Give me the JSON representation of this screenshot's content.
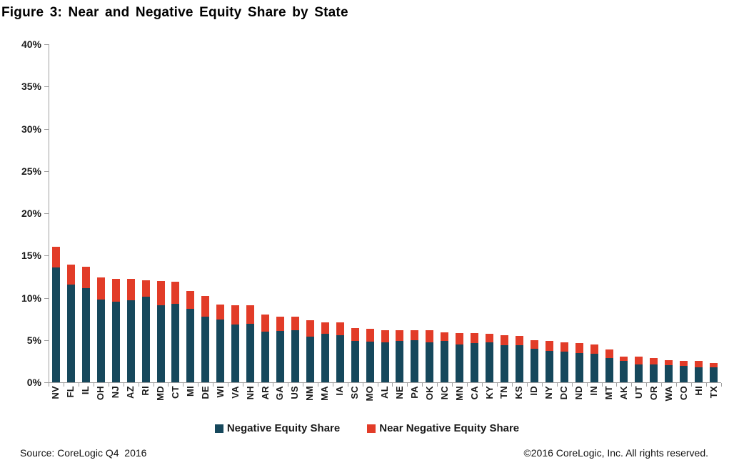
{
  "title": "Figure 3: Near and Negative Equity Share by State",
  "legend": {
    "negative": {
      "label": "Negative Equity Share",
      "color": "#16485C"
    },
    "near": {
      "label": "Near Negative Equity Share",
      "color": "#E23C28"
    }
  },
  "footer": {
    "source": "Source: CoreLogic Q4  2016",
    "copyright": "©2016 CoreLogic, Inc. All rights reserved."
  },
  "chart_data": {
    "type": "bar",
    "stacked": true,
    "title": "Figure 3: Near and Negative Equity Share by State",
    "xlabel": "",
    "ylabel": "",
    "ylim": [
      0,
      40
    ],
    "yticks": [
      "0%",
      "5%",
      "10%",
      "15%",
      "20%",
      "25%",
      "30%",
      "35%",
      "40%"
    ],
    "ytick_values": [
      0,
      5,
      10,
      15,
      20,
      25,
      30,
      35,
      40
    ],
    "grid": false,
    "legend_position": "bottom",
    "categories": [
      "NV",
      "FL",
      "IL",
      "OH",
      "NJ",
      "AZ",
      "RI",
      "MD",
      "CT",
      "MI",
      "DE",
      "WI",
      "VA",
      "NH",
      "AR",
      "GA",
      "US",
      "NM",
      "MA",
      "IA",
      "SC",
      "MO",
      "AL",
      "NE",
      "PA",
      "OK",
      "NC",
      "MN",
      "CA",
      "KY",
      "TN",
      "KS",
      "ID",
      "NY",
      "DC",
      "ND",
      "IN",
      "MT",
      "AK",
      "UT",
      "OR",
      "WA",
      "CO",
      "HI",
      "TX"
    ],
    "series": [
      {
        "name": "Negative Equity Share",
        "color": "#16485C",
        "values": [
          13.6,
          11.6,
          11.1,
          9.8,
          9.5,
          9.7,
          10.1,
          9.1,
          9.3,
          8.7,
          7.8,
          7.4,
          6.8,
          6.9,
          6.0,
          6.1,
          6.2,
          5.4,
          5.7,
          5.6,
          4.9,
          4.8,
          4.7,
          4.9,
          5.0,
          4.7,
          4.9,
          4.5,
          4.6,
          4.7,
          4.4,
          4.4,
          4.0,
          3.7,
          3.6,
          3.5,
          3.4,
          2.9,
          2.5,
          2.1,
          2.1,
          2.0,
          1.9,
          1.8,
          1.8
        ]
      },
      {
        "name": "Near Negative Equity Share",
        "color": "#E23C28",
        "values": [
          2.4,
          2.3,
          2.6,
          2.6,
          2.7,
          2.5,
          2.0,
          2.9,
          2.6,
          2.1,
          2.4,
          1.8,
          2.3,
          2.2,
          2.0,
          1.7,
          1.6,
          1.9,
          1.4,
          1.5,
          1.5,
          1.5,
          1.5,
          1.3,
          1.2,
          1.5,
          1.0,
          1.3,
          1.2,
          1.0,
          1.2,
          1.1,
          1.0,
          1.2,
          1.1,
          1.1,
          1.1,
          1.0,
          0.5,
          0.9,
          0.8,
          0.6,
          0.6,
          0.7,
          0.5
        ]
      }
    ]
  }
}
